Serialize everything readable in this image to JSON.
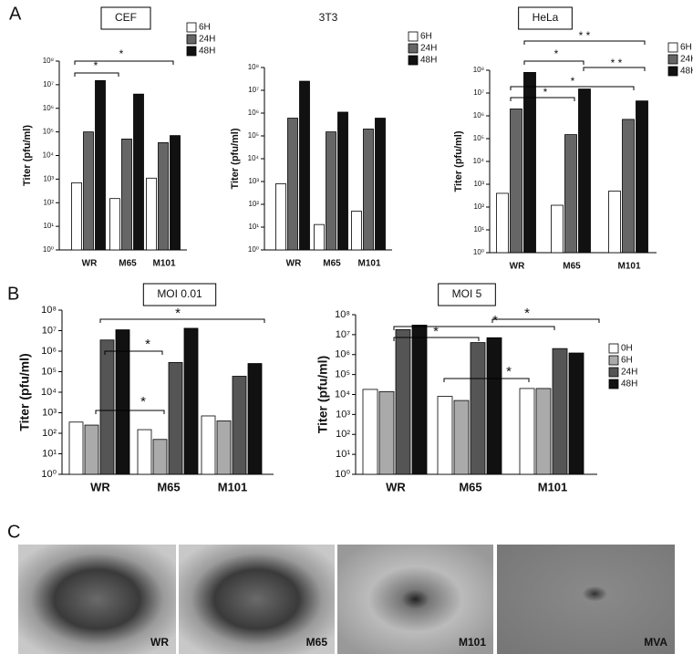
{
  "panel_labels": [
    "A",
    "B",
    "C"
  ],
  "chart_data": [
    {
      "type": "bar",
      "title": "CEF",
      "title_box": true,
      "y_label": "Titer (pfu/ml)",
      "log_scale": true,
      "legend": true,
      "categories": [
        "WR",
        "M65",
        "M101"
      ],
      "series": [
        {
          "name": "6H",
          "color": "#ffffff",
          "values": [
            700,
            150,
            1100
          ]
        },
        {
          "name": "24H",
          "color": "#666666",
          "values": [
            100000,
            50000,
            35000
          ]
        },
        {
          "name": "48H",
          "color": "#111111",
          "values": [
            15000000,
            4000000,
            70000
          ]
        }
      ],
      "ylim": [
        1,
        100000000
      ],
      "yticks": [
        {
          "value": 1,
          "label": "10⁰"
        },
        {
          "value": 10,
          "label": "10¹"
        },
        {
          "value": 100,
          "label": "10²"
        },
        {
          "value": 1000,
          "label": "10³"
        },
        {
          "value": 10000,
          "label": "10⁴"
        },
        {
          "value": 100000,
          "label": "10⁵"
        },
        {
          "value": 1000000,
          "label": "10⁶"
        },
        {
          "value": 10000000,
          "label": "10⁷"
        },
        {
          "value": 100000000,
          "label": "10⁸"
        }
      ],
      "annotations": [
        "*",
        "*"
      ]
    },
    {
      "type": "bar",
      "title": "3T3",
      "title_box": false,
      "y_label": "Titer (pfu/ml)",
      "log_scale": true,
      "legend": true,
      "categories": [
        "WR",
        "M65",
        "M101"
      ],
      "series": [
        {
          "name": "6H",
          "color": "#ffffff",
          "values": [
            800,
            13,
            50
          ]
        },
        {
          "name": "24H",
          "color": "#666666",
          "values": [
            600000,
            150000,
            200000
          ]
        },
        {
          "name": "48H",
          "color": "#111111",
          "values": [
            25000000,
            1100000,
            600000
          ]
        }
      ],
      "ylim": [
        1,
        100000000
      ],
      "yticks": [
        {
          "value": 1,
          "label": "10⁰"
        },
        {
          "value": 10,
          "label": "10¹"
        },
        {
          "value": 100,
          "label": "10²"
        },
        {
          "value": 1000,
          "label": "10³"
        },
        {
          "value": 10000,
          "label": "10⁴"
        },
        {
          "value": 100000,
          "label": "10⁵"
        },
        {
          "value": 1000000,
          "label": "10⁶"
        },
        {
          "value": 10000000,
          "label": "10⁷"
        },
        {
          "value": 100000000,
          "label": "10⁸"
        }
      ],
      "annotations": []
    },
    {
      "type": "bar",
      "title": "HeLa",
      "title_box": true,
      "y_label": "Titer (pfu/ml)",
      "log_scale": true,
      "legend": true,
      "categories": [
        "WR",
        "M65",
        "M101"
      ],
      "series": [
        {
          "name": "6H",
          "color": "#ffffff",
          "values": [
            400,
            120,
            500
          ]
        },
        {
          "name": "24H",
          "color": "#666666",
          "values": [
            2000000,
            150000,
            700000
          ]
        },
        {
          "name": "48H",
          "color": "#111111",
          "values": [
            80000000,
            15000000,
            4500000
          ]
        }
      ],
      "ylim": [
        1,
        100000000
      ],
      "yticks": [
        {
          "value": 1,
          "label": "10⁰"
        },
        {
          "value": 10,
          "label": "10¹"
        },
        {
          "value": 100,
          "label": "10²"
        },
        {
          "value": 1000,
          "label": "10³"
        },
        {
          "value": 10000,
          "label": "10⁴"
        },
        {
          "value": 100000,
          "label": "10⁵"
        },
        {
          "value": 1000000,
          "label": "10⁶"
        },
        {
          "value": 10000000,
          "label": "10⁷"
        },
        {
          "value": 100000000,
          "label": "10⁸"
        }
      ],
      "annotations": [
        "* *",
        "*",
        "* *",
        "*",
        "*"
      ]
    },
    {
      "type": "bar",
      "title": "MOI 0.01",
      "title_box": true,
      "y_label": "Titer (pfu/ml)",
      "log_scale": true,
      "legend": false,
      "categories": [
        "WR",
        "M65",
        "M101"
      ],
      "series": [
        {
          "name": "0H",
          "color": "#ffffff",
          "values": [
            350,
            150,
            700
          ]
        },
        {
          "name": "6H",
          "color": "#aaaaaa",
          "values": [
            250,
            50,
            400
          ]
        },
        {
          "name": "24H",
          "color": "#555555",
          "values": [
            3500000,
            280000,
            60000
          ]
        },
        {
          "name": "48H",
          "color": "#111111",
          "values": [
            11000000,
            13000000,
            250000
          ]
        }
      ],
      "ylim": [
        1,
        100000000
      ],
      "yticks": [
        {
          "value": 1,
          "label": "10⁰"
        },
        {
          "value": 10,
          "label": "10¹"
        },
        {
          "value": 100,
          "label": "10²"
        },
        {
          "value": 1000,
          "label": "10³"
        },
        {
          "value": 10000,
          "label": "10⁴"
        },
        {
          "value": 100000,
          "label": "10⁵"
        },
        {
          "value": 1000000,
          "label": "10⁶"
        },
        {
          "value": 10000000,
          "label": "10⁷"
        },
        {
          "value": 100000000,
          "label": "10⁸"
        }
      ],
      "annotations": [
        "*",
        "*",
        "*"
      ]
    },
    {
      "type": "bar",
      "title": "MOI 5",
      "title_box": true,
      "y_label": "Titer (pfu/ml)",
      "log_scale": true,
      "legend": true,
      "categories": [
        "WR",
        "M65",
        "M101"
      ],
      "series": [
        {
          "name": "0H",
          "color": "#ffffff",
          "values": [
            18000,
            8000,
            20000
          ]
        },
        {
          "name": "6H",
          "color": "#aaaaaa",
          "values": [
            14000,
            5000,
            20000
          ]
        },
        {
          "name": "24H",
          "color": "#555555",
          "values": [
            18000000,
            4000000,
            2000000
          ]
        },
        {
          "name": "48H",
          "color": "#111111",
          "values": [
            30000000,
            7000000,
            1200000
          ]
        }
      ],
      "ylim": [
        1,
        100000000
      ],
      "yticks": [
        {
          "value": 1,
          "label": "10⁰"
        },
        {
          "value": 10,
          "label": "10¹"
        },
        {
          "value": 100,
          "label": "10²"
        },
        {
          "value": 1000,
          "label": "10³"
        },
        {
          "value": 10000,
          "label": "10⁴"
        },
        {
          "value": 100000,
          "label": "10⁵"
        },
        {
          "value": 1000000,
          "label": "10⁶"
        },
        {
          "value": 10000000,
          "label": "10⁷"
        },
        {
          "value": 100000000,
          "label": "10⁸"
        }
      ],
      "annotations": [
        "*",
        "*",
        "*",
        "*"
      ]
    }
  ],
  "panel_c": {
    "images": [
      {
        "label": "WR"
      },
      {
        "label": "M65"
      },
      {
        "label": "M101"
      },
      {
        "label": "MVA"
      }
    ]
  }
}
